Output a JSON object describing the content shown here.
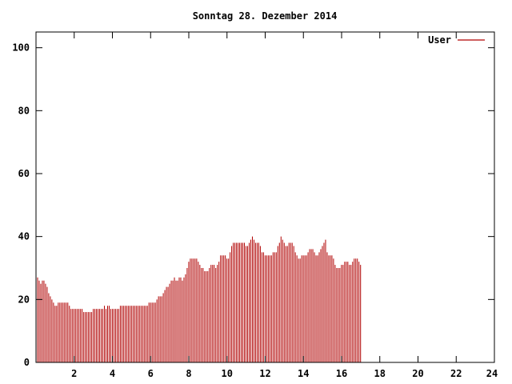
{
  "chart_data": {
    "type": "bar",
    "title": "Sonntag 28. Dezember 2014",
    "xlabel": "",
    "ylabel": "",
    "xlim": [
      0,
      24
    ],
    "ylim": [
      0,
      105
    ],
    "x_ticks": [
      2,
      4,
      6,
      8,
      10,
      12,
      14,
      16,
      18,
      20,
      22,
      24
    ],
    "y_ticks": [
      0,
      20,
      40,
      60,
      80,
      100
    ],
    "grid": false,
    "legend": {
      "position": "top-right"
    },
    "series": [
      {
        "name": "User",
        "color": "#b00000",
        "x_start": 0,
        "x_step": 0.0833,
        "values": [
          28,
          27,
          26,
          25,
          26,
          26,
          25,
          24,
          22,
          21,
          20,
          19,
          18,
          18,
          19,
          19,
          19,
          19,
          19,
          19,
          19,
          18,
          17,
          17,
          17,
          17,
          17,
          17,
          17,
          17,
          16,
          16,
          16,
          16,
          16,
          16,
          17,
          17,
          17,
          17,
          17,
          17,
          17,
          18,
          17,
          18,
          18,
          17,
          17,
          17,
          17,
          17,
          17,
          18,
          18,
          18,
          18,
          18,
          18,
          18,
          18,
          18,
          18,
          18,
          18,
          18,
          18,
          18,
          18,
          18,
          18,
          19,
          19,
          19,
          19,
          19,
          20,
          21,
          21,
          21,
          22,
          23,
          24,
          24,
          25,
          26,
          26,
          27,
          26,
          26,
          27,
          27,
          26,
          27,
          28,
          30,
          32,
          33,
          33,
          33,
          33,
          33,
          32,
          31,
          30,
          30,
          29,
          29,
          29,
          30,
          31,
          31,
          31,
          30,
          31,
          32,
          34,
          34,
          34,
          34,
          33,
          33,
          35,
          37,
          38,
          38,
          38,
          38,
          38,
          38,
          38,
          38,
          37,
          37,
          38,
          39,
          40,
          39,
          38,
          38,
          38,
          37,
          35,
          35,
          34,
          34,
          34,
          34,
          34,
          35,
          35,
          35,
          37,
          38,
          40,
          39,
          38,
          37,
          37,
          38,
          38,
          38,
          37,
          35,
          34,
          33,
          33,
          34,
          34,
          34,
          34,
          35,
          36,
          36,
          36,
          35,
          34,
          34,
          35,
          36,
          37,
          38,
          39,
          35,
          34,
          34,
          34,
          33,
          31,
          30,
          30,
          30,
          31,
          31,
          32,
          32,
          32,
          31,
          31,
          32,
          33,
          33,
          33,
          32,
          31
        ]
      }
    ]
  }
}
